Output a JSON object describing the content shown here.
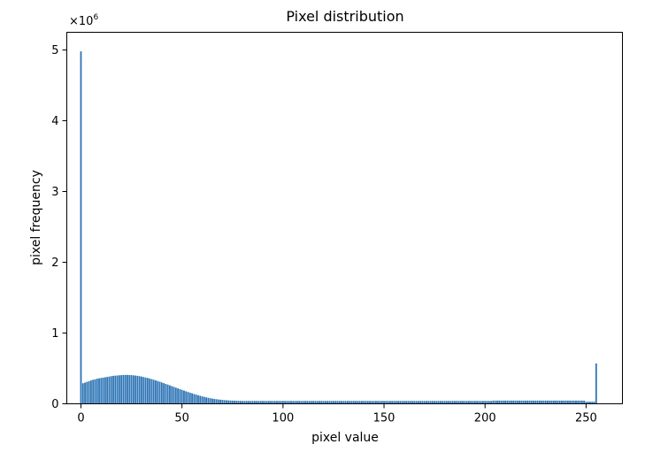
{
  "chart_data": {
    "type": "bar",
    "title": "Pixel distribution",
    "xlabel": "pixel value",
    "ylabel": "pixel frequency",
    "y_multiplier_label": "×10",
    "y_multiplier_exponent": "6",
    "xlim": [
      -7,
      268
    ],
    "ylim": [
      0,
      5250000
    ],
    "x_ticks": [
      0,
      50,
      100,
      150,
      200,
      250
    ],
    "y_ticks": [
      0,
      1000000,
      2000000,
      3000000,
      4000000,
      5000000
    ],
    "y_tick_labels": [
      "0",
      "1",
      "2",
      "3",
      "4",
      "5"
    ],
    "grid": false,
    "bar_color": "#2e75b6",
    "x": [
      0,
      1,
      2,
      3,
      4,
      5,
      6,
      7,
      8,
      9,
      10,
      11,
      12,
      13,
      14,
      15,
      16,
      17,
      18,
      19,
      20,
      21,
      22,
      23,
      24,
      25,
      26,
      27,
      28,
      29,
      30,
      31,
      32,
      33,
      34,
      35,
      36,
      37,
      38,
      39,
      40,
      41,
      42,
      43,
      44,
      45,
      46,
      47,
      48,
      49,
      50,
      51,
      52,
      53,
      54,
      55,
      56,
      57,
      58,
      59,
      60,
      61,
      62,
      63,
      64,
      65,
      66,
      67,
      68,
      69,
      70,
      71,
      72,
      73,
      74,
      75,
      76,
      77,
      78,
      79,
      80,
      81,
      82,
      83,
      84,
      85,
      86,
      87,
      88,
      89,
      90,
      91,
      92,
      93,
      94,
      95,
      96,
      97,
      98,
      99,
      100,
      101,
      102,
      103,
      104,
      105,
      106,
      107,
      108,
      109,
      110,
      111,
      112,
      113,
      114,
      115,
      116,
      117,
      118,
      119,
      120,
      121,
      122,
      123,
      124,
      125,
      126,
      127,
      128,
      129,
      130,
      131,
      132,
      133,
      134,
      135,
      136,
      137,
      138,
      139,
      140,
      141,
      142,
      143,
      144,
      145,
      146,
      147,
      148,
      149,
      150,
      151,
      152,
      153,
      154,
      155,
      156,
      157,
      158,
      159,
      160,
      161,
      162,
      163,
      164,
      165,
      166,
      167,
      168,
      169,
      170,
      171,
      172,
      173,
      174,
      175,
      176,
      177,
      178,
      179,
      180,
      181,
      182,
      183,
      184,
      185,
      186,
      187,
      188,
      189,
      190,
      191,
      192,
      193,
      194,
      195,
      196,
      197,
      198,
      199,
      200,
      201,
      202,
      203,
      204,
      205,
      206,
      207,
      208,
      209,
      210,
      211,
      212,
      213,
      214,
      215,
      216,
      217,
      218,
      219,
      220,
      221,
      222,
      223,
      224,
      225,
      226,
      227,
      228,
      229,
      230,
      231,
      232,
      233,
      234,
      235,
      236,
      237,
      238,
      239,
      240,
      241,
      242,
      243,
      244,
      245,
      246,
      247,
      248,
      249,
      250,
      251,
      252,
      253,
      254,
      255
    ],
    "values": [
      4980000,
      290000,
      300000,
      310000,
      320000,
      330000,
      340000,
      345000,
      355000,
      360000,
      365000,
      370000,
      375000,
      380000,
      385000,
      390000,
      395000,
      398000,
      400000,
      403000,
      405000,
      407000,
      408000,
      408000,
      407000,
      405000,
      402000,
      399000,
      395000,
      390000,
      385000,
      378000,
      372000,
      365000,
      357000,
      349000,
      340000,
      331000,
      322000,
      312000,
      302000,
      292000,
      281000,
      271000,
      260000,
      250000,
      239000,
      228000,
      218000,
      207000,
      197000,
      187000,
      177000,
      167000,
      157000,
      148000,
      139000,
      130000,
      121000,
      113000,
      105000,
      98000,
      91000,
      85000,
      79000,
      74000,
      69000,
      65000,
      61000,
      58000,
      55000,
      52000,
      50000,
      48000,
      46000,
      45000,
      44000,
      43000,
      42000,
      41000,
      40000,
      40000,
      40000,
      40000,
      40000,
      40000,
      40000,
      40000,
      40000,
      40000,
      40000,
      40000,
      40000,
      40000,
      40000,
      40000,
      40000,
      40000,
      40000,
      40000,
      40000,
      40000,
      40000,
      40000,
      40000,
      40000,
      40000,
      40000,
      40000,
      40000,
      40000,
      40000,
      40000,
      40000,
      40000,
      40000,
      40000,
      40000,
      40000,
      40000,
      40000,
      40000,
      40000,
      40000,
      40000,
      40000,
      40000,
      40000,
      40000,
      40000,
      40000,
      40000,
      40000,
      40000,
      40000,
      40000,
      40000,
      40000,
      40000,
      40000,
      40000,
      40000,
      40000,
      40000,
      40000,
      40000,
      40000,
      40000,
      40000,
      40000,
      40000,
      40000,
      40000,
      40000,
      40000,
      40000,
      40000,
      40000,
      40000,
      40000,
      40000,
      40000,
      40000,
      40000,
      40000,
      40000,
      40000,
      40000,
      40000,
      40000,
      40000,
      40000,
      40000,
      40000,
      40000,
      40000,
      40000,
      40000,
      40000,
      40000,
      40000,
      40000,
      40000,
      40000,
      40000,
      40000,
      40000,
      40000,
      40000,
      40000,
      40000,
      40000,
      40000,
      40000,
      40000,
      40000,
      40000,
      40000,
      40000,
      40000,
      40000,
      40000,
      40000,
      40000,
      45000,
      45000,
      45000,
      45000,
      45000,
      45000,
      45000,
      45000,
      45000,
      45000,
      45000,
      45000,
      45000,
      45000,
      45000,
      45000,
      45000,
      45000,
      45000,
      45000,
      45000,
      45000,
      45000,
      45000,
      45000,
      45000,
      45000,
      45000,
      45000,
      45000,
      45000,
      45000,
      45000,
      45000,
      45000,
      45000,
      45000,
      45000,
      45000,
      45000,
      45000,
      45000,
      45000,
      45000,
      45000,
      45000,
      30000,
      30000,
      30000,
      30000,
      30000,
      570000
    ]
  }
}
